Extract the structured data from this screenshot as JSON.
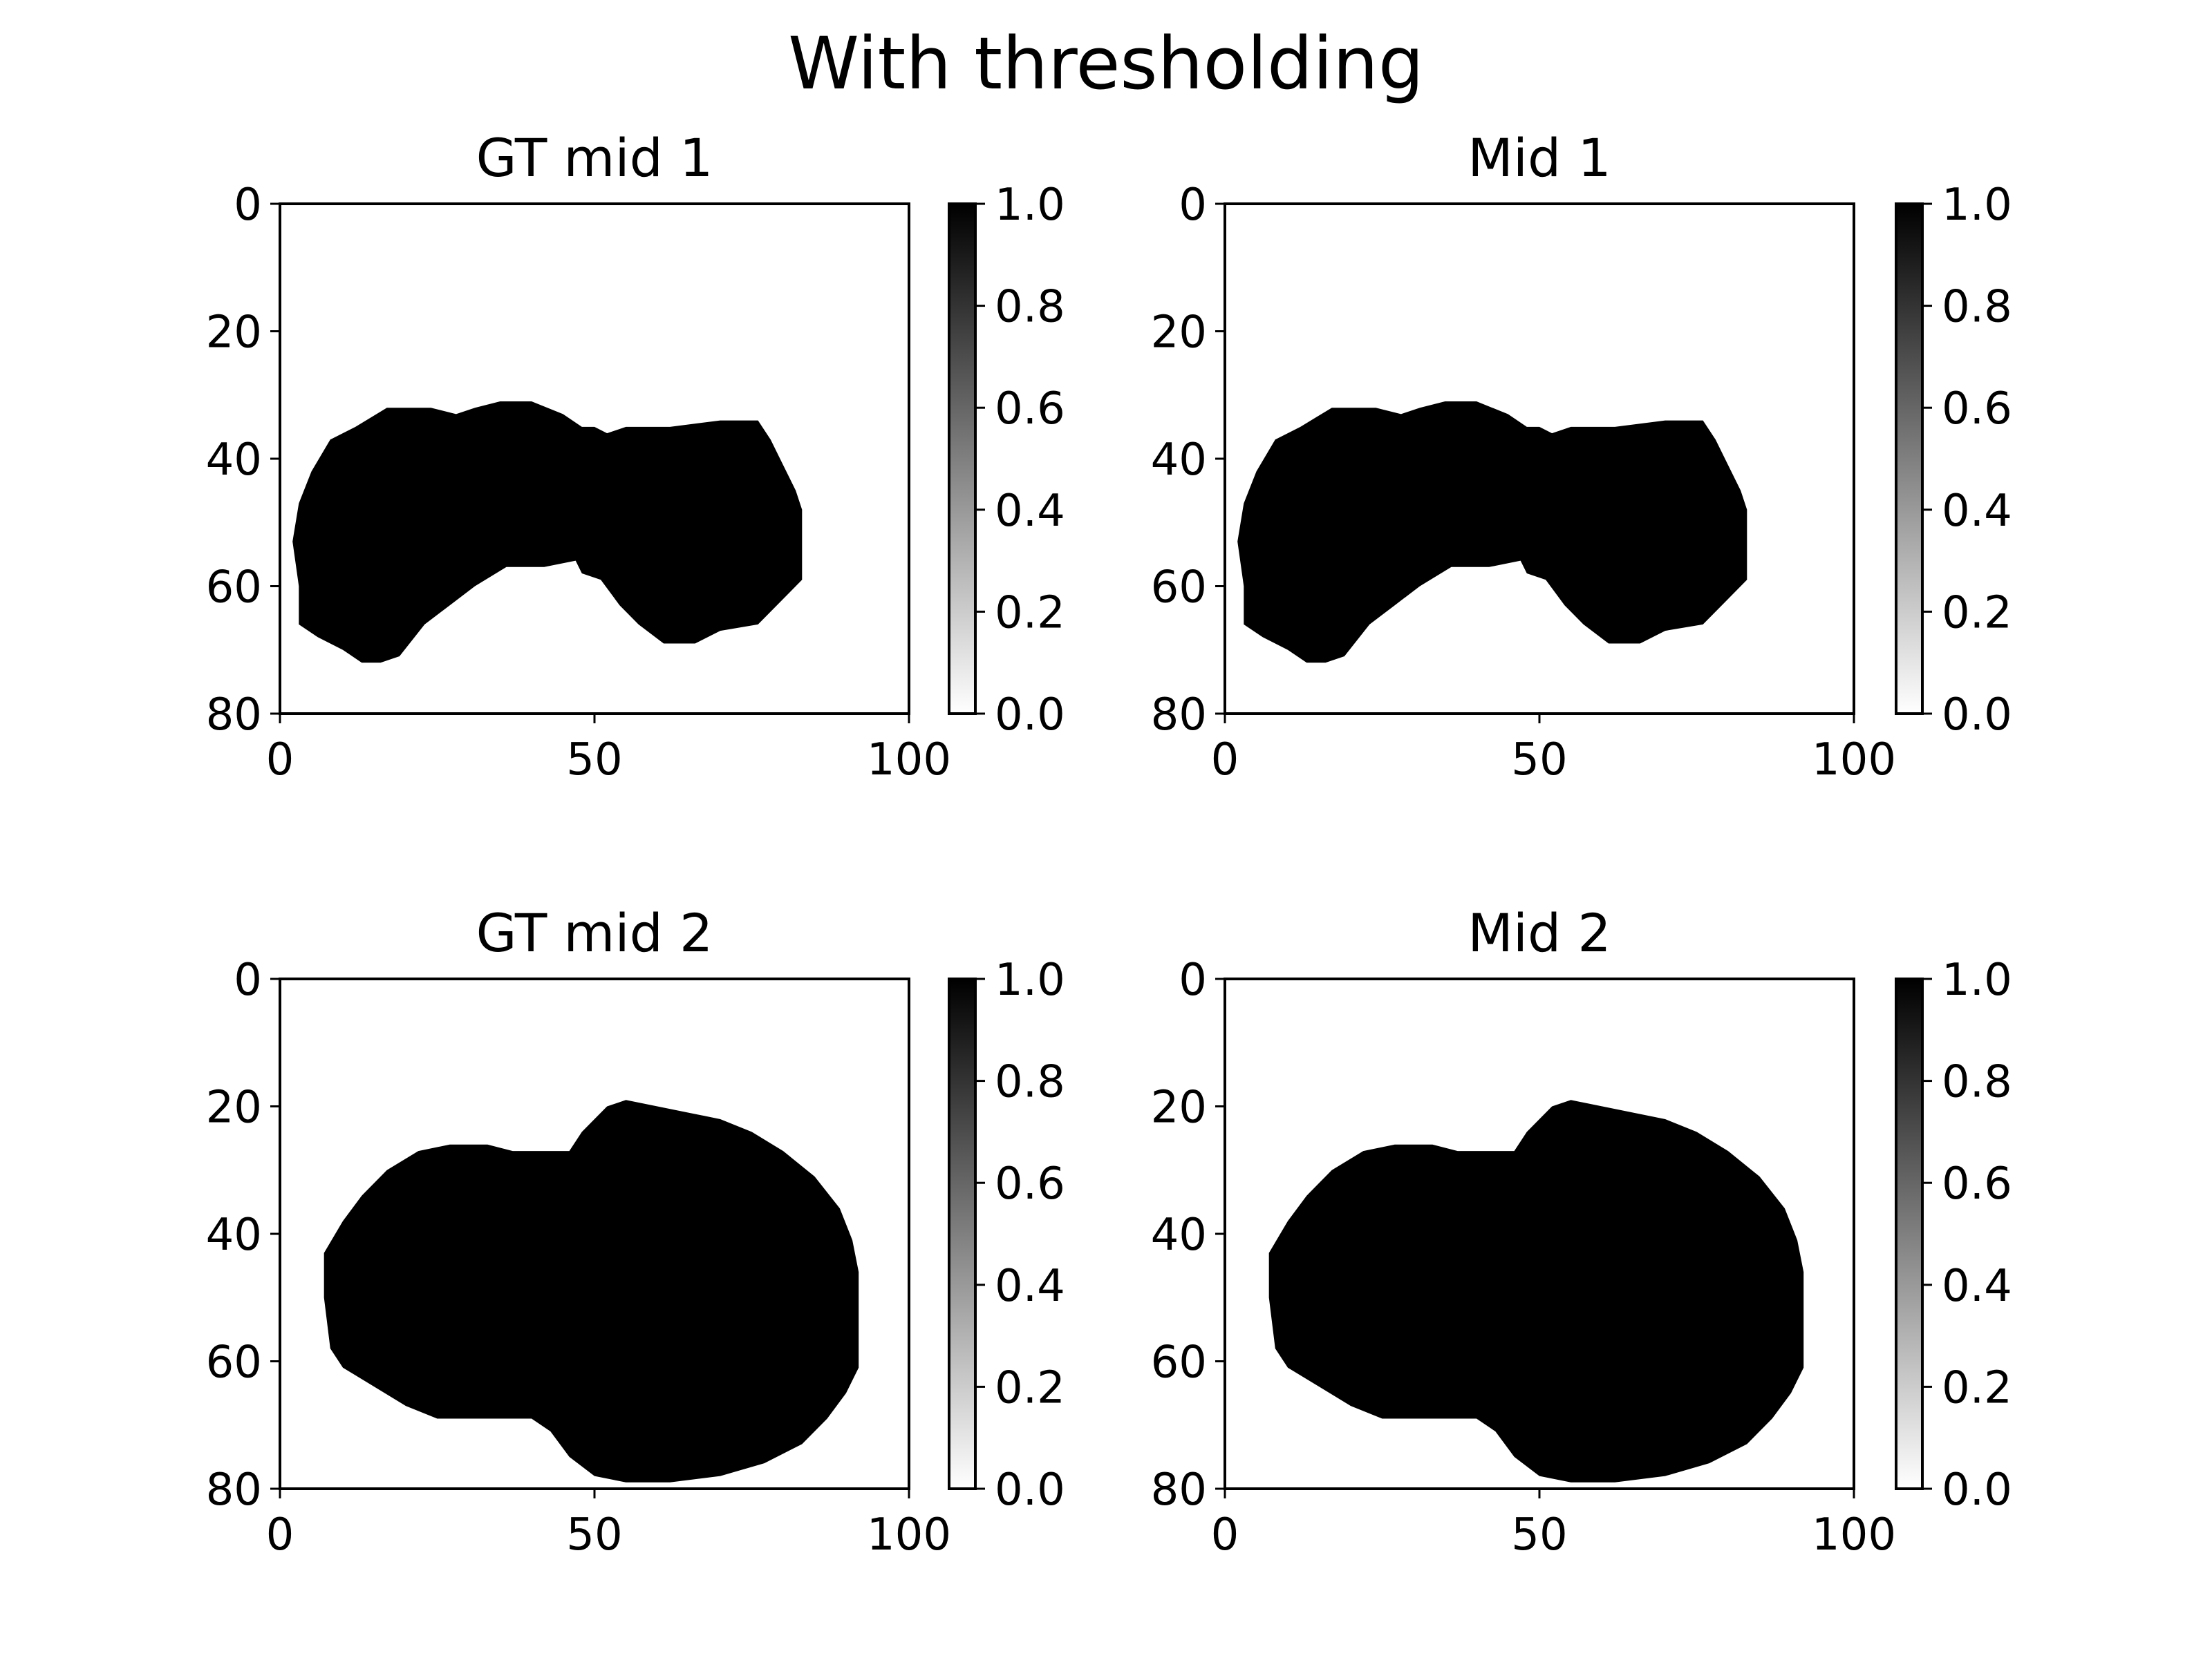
{
  "figure": {
    "title": "With thresholding"
  },
  "chart_data": [
    {
      "type": "heatmap",
      "title": "GT mid 1",
      "xlim": [
        0,
        100
      ],
      "ylim": [
        80,
        0
      ],
      "xticks": [
        "0",
        "50",
        "100"
      ],
      "yticks": [
        "0",
        "20",
        "40",
        "60",
        "80"
      ],
      "colorbar": {
        "range": [
          0.0,
          1.0
        ],
        "ticks": [
          "0.0",
          "0.2",
          "0.4",
          "0.6",
          "0.8",
          "1.0"
        ],
        "cmap": "gray_r"
      },
      "mask_value": 1.0,
      "mask_outline": [
        [
          3,
          47
        ],
        [
          5,
          42
        ],
        [
          8,
          37
        ],
        [
          12,
          35
        ],
        [
          17,
          32
        ],
        [
          24,
          32
        ],
        [
          28,
          33
        ],
        [
          31,
          32
        ],
        [
          35,
          31
        ],
        [
          40,
          31
        ],
        [
          45,
          33
        ],
        [
          48,
          35
        ],
        [
          50,
          35
        ],
        [
          52,
          36
        ],
        [
          55,
          35
        ],
        [
          62,
          35
        ],
        [
          70,
          34
        ],
        [
          76,
          34
        ],
        [
          78,
          37
        ],
        [
          80,
          41
        ],
        [
          82,
          45
        ],
        [
          83,
          48
        ],
        [
          83,
          59
        ],
        [
          80,
          62
        ],
        [
          76,
          66
        ],
        [
          70,
          67
        ],
        [
          66,
          69
        ],
        [
          61,
          69
        ],
        [
          57,
          66
        ],
        [
          54,
          63
        ],
        [
          51,
          59
        ],
        [
          48,
          58
        ],
        [
          47,
          56
        ],
        [
          42,
          57
        ],
        [
          36,
          57
        ],
        [
          31,
          60
        ],
        [
          27,
          63
        ],
        [
          23,
          66
        ],
        [
          19,
          71
        ],
        [
          16,
          72
        ],
        [
          13,
          72
        ],
        [
          10,
          70
        ],
        [
          6,
          68
        ],
        [
          3,
          66
        ],
        [
          3,
          60
        ],
        [
          2,
          53
        ]
      ]
    },
    {
      "type": "heatmap",
      "title": "Mid 1",
      "xlim": [
        0,
        100
      ],
      "ylim": [
        80,
        0
      ],
      "xticks": [
        "0",
        "50",
        "100"
      ],
      "yticks": [
        "0",
        "20",
        "40",
        "60",
        "80"
      ],
      "colorbar": {
        "range": [
          0.0,
          1.0
        ],
        "ticks": [
          "0.0",
          "0.2",
          "0.4",
          "0.6",
          "0.8",
          "1.0"
        ],
        "cmap": "gray_r"
      },
      "mask_value": 1.0,
      "mask_outline": [
        [
          3,
          47
        ],
        [
          5,
          42
        ],
        [
          8,
          37
        ],
        [
          12,
          35
        ],
        [
          17,
          32
        ],
        [
          24,
          32
        ],
        [
          28,
          33
        ],
        [
          31,
          32
        ],
        [
          35,
          31
        ],
        [
          40,
          31
        ],
        [
          45,
          33
        ],
        [
          48,
          35
        ],
        [
          50,
          35
        ],
        [
          52,
          36
        ],
        [
          55,
          35
        ],
        [
          62,
          35
        ],
        [
          70,
          34
        ],
        [
          76,
          34
        ],
        [
          78,
          37
        ],
        [
          80,
          41
        ],
        [
          82,
          45
        ],
        [
          83,
          48
        ],
        [
          83,
          59
        ],
        [
          80,
          62
        ],
        [
          76,
          66
        ],
        [
          70,
          67
        ],
        [
          66,
          69
        ],
        [
          61,
          69
        ],
        [
          57,
          66
        ],
        [
          54,
          63
        ],
        [
          51,
          59
        ],
        [
          48,
          58
        ],
        [
          47,
          56
        ],
        [
          42,
          57
        ],
        [
          36,
          57
        ],
        [
          31,
          60
        ],
        [
          27,
          63
        ],
        [
          23,
          66
        ],
        [
          19,
          71
        ],
        [
          16,
          72
        ],
        [
          13,
          72
        ],
        [
          10,
          70
        ],
        [
          6,
          68
        ],
        [
          3,
          66
        ],
        [
          3,
          60
        ],
        [
          2,
          53
        ]
      ]
    },
    {
      "type": "heatmap",
      "title": "GT mid 2",
      "xlim": [
        0,
        100
      ],
      "ylim": [
        80,
        0
      ],
      "xticks": [
        "0",
        "50",
        "100"
      ],
      "yticks": [
        "0",
        "20",
        "40",
        "60",
        "80"
      ],
      "colorbar": {
        "range": [
          0.0,
          1.0
        ],
        "ticks": [
          "0.0",
          "0.2",
          "0.4",
          "0.6",
          "0.8",
          "1.0"
        ],
        "cmap": "gray_r"
      },
      "mask_value": 1.0,
      "mask_outline": [
        [
          7,
          43
        ],
        [
          10,
          38
        ],
        [
          13,
          34
        ],
        [
          17,
          30
        ],
        [
          22,
          27
        ],
        [
          27,
          26
        ],
        [
          33,
          26
        ],
        [
          37,
          27
        ],
        [
          46,
          27
        ],
        [
          48,
          24
        ],
        [
          52,
          20
        ],
        [
          55,
          19
        ],
        [
          60,
          20
        ],
        [
          65,
          21
        ],
        [
          70,
          22
        ],
        [
          75,
          24
        ],
        [
          80,
          27
        ],
        [
          85,
          31
        ],
        [
          89,
          36
        ],
        [
          91,
          41
        ],
        [
          92,
          46
        ],
        [
          92,
          61
        ],
        [
          90,
          65
        ],
        [
          87,
          69
        ],
        [
          83,
          73
        ],
        [
          77,
          76
        ],
        [
          70,
          78
        ],
        [
          62,
          79
        ],
        [
          55,
          79
        ],
        [
          50,
          78
        ],
        [
          46,
          75
        ],
        [
          43,
          71
        ],
        [
          40,
          69
        ],
        [
          35,
          69
        ],
        [
          30,
          69
        ],
        [
          25,
          69
        ],
        [
          20,
          67
        ],
        [
          15,
          64
        ],
        [
          10,
          61
        ],
        [
          8,
          58
        ],
        [
          7,
          50
        ]
      ]
    },
    {
      "type": "heatmap",
      "title": "Mid 2",
      "xlim": [
        0,
        100
      ],
      "ylim": [
        80,
        0
      ],
      "xticks": [
        "0",
        "50",
        "100"
      ],
      "yticks": [
        "0",
        "20",
        "40",
        "60",
        "80"
      ],
      "colorbar": {
        "range": [
          0.0,
          1.0
        ],
        "ticks": [
          "0.0",
          "0.2",
          "0.4",
          "0.6",
          "0.8",
          "1.0"
        ],
        "cmap": "gray_r"
      },
      "mask_value": 1.0,
      "mask_outline": [
        [
          7,
          43
        ],
        [
          10,
          38
        ],
        [
          13,
          34
        ],
        [
          17,
          30
        ],
        [
          22,
          27
        ],
        [
          27,
          26
        ],
        [
          33,
          26
        ],
        [
          37,
          27
        ],
        [
          46,
          27
        ],
        [
          48,
          24
        ],
        [
          52,
          20
        ],
        [
          55,
          19
        ],
        [
          60,
          20
        ],
        [
          65,
          21
        ],
        [
          70,
          22
        ],
        [
          75,
          24
        ],
        [
          80,
          27
        ],
        [
          85,
          31
        ],
        [
          89,
          36
        ],
        [
          91,
          41
        ],
        [
          92,
          46
        ],
        [
          92,
          61
        ],
        [
          90,
          65
        ],
        [
          87,
          69
        ],
        [
          83,
          73
        ],
        [
          77,
          76
        ],
        [
          70,
          78
        ],
        [
          62,
          79
        ],
        [
          55,
          79
        ],
        [
          50,
          78
        ],
        [
          46,
          75
        ],
        [
          43,
          71
        ],
        [
          40,
          69
        ],
        [
          35,
          69
        ],
        [
          30,
          69
        ],
        [
          25,
          69
        ],
        [
          20,
          67
        ],
        [
          15,
          64
        ],
        [
          10,
          61
        ],
        [
          8,
          58
        ],
        [
          7,
          50
        ]
      ]
    }
  ]
}
